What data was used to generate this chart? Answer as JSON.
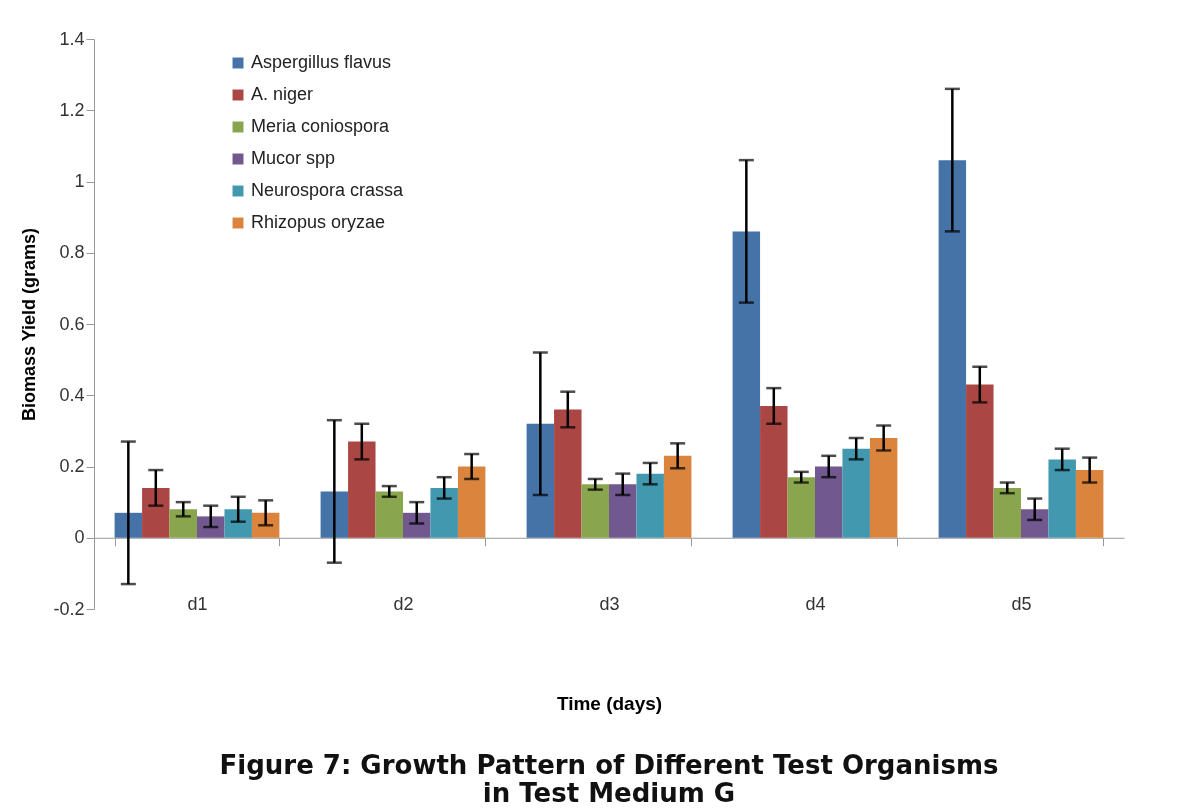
{
  "chart_data": {
    "type": "bar",
    "title": "Figure 7: Growth Pattern of Different Test Organisms\nin Test Medium  G",
    "xlabel": "Time (days)",
    "ylabel": "Biomass Yield (grams)",
    "categories": [
      "d1",
      "d2",
      "d3",
      "d4",
      "d5"
    ],
    "series": [
      {
        "name": "Aspergillus flavus",
        "color": "#4572a7",
        "values": [
          0.07,
          0.13,
          0.32,
          0.86,
          1.06
        ],
        "errors": [
          0.2,
          0.2,
          0.2,
          0.2,
          0.2
        ]
      },
      {
        "name": "A. niger",
        "color": "#aa4643",
        "values": [
          0.14,
          0.27,
          0.36,
          0.37,
          0.43
        ],
        "errors": [
          0.05,
          0.05,
          0.05,
          0.05,
          0.05
        ]
      },
      {
        "name": "Meria coniospora",
        "color": "#89a54e",
        "values": [
          0.08,
          0.13,
          0.15,
          0.17,
          0.14
        ],
        "errors": [
          0.02,
          0.015,
          0.015,
          0.015,
          0.015
        ]
      },
      {
        "name": "Mucor spp",
        "color": "#71588f",
        "values": [
          0.06,
          0.07,
          0.15,
          0.2,
          0.08
        ],
        "errors": [
          0.03,
          0.03,
          0.03,
          0.03,
          0.03
        ]
      },
      {
        "name": "Neurospora crassa",
        "color": "#4198af",
        "values": [
          0.08,
          0.14,
          0.18,
          0.25,
          0.22
        ],
        "errors": [
          0.035,
          0.03,
          0.03,
          0.03,
          0.03
        ]
      },
      {
        "name": "Rhizopus oryzae",
        "color": "#db843d",
        "values": [
          0.07,
          0.2,
          0.23,
          0.28,
          0.19
        ],
        "errors": [
          0.035,
          0.035,
          0.035,
          0.035,
          0.035
        ]
      }
    ],
    "ylim": [
      -0.2,
      1.4
    ],
    "yticks": [
      -0.2,
      0,
      0.2,
      0.4,
      0.6,
      0.8,
      1,
      1.2,
      1.4
    ],
    "legend": "top left"
  }
}
